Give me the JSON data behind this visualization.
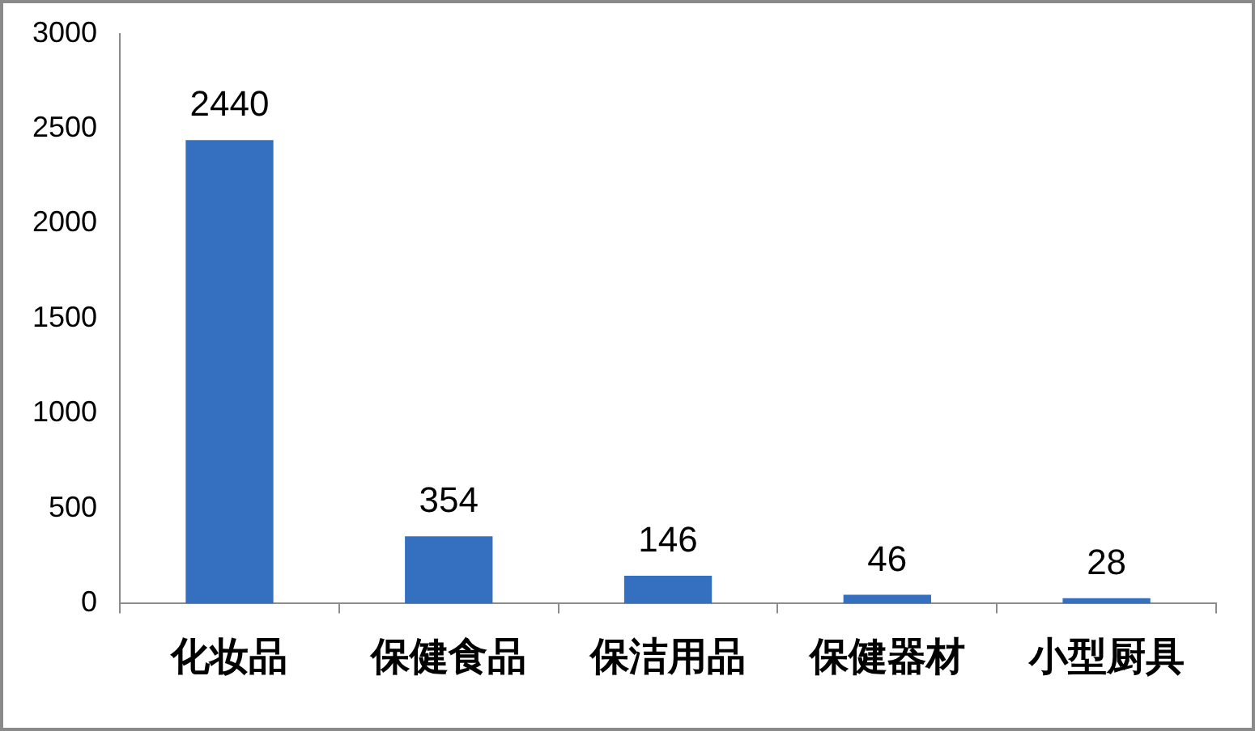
{
  "chart_data": {
    "type": "bar",
    "categories": [
      "化妆品",
      "保健食品",
      "保洁用品",
      "保健器材",
      "小型厨具"
    ],
    "values": [
      2440,
      354,
      146,
      46,
      28
    ],
    "color": "#3470bf",
    "ylim": [
      0,
      3000
    ],
    "yticks": [
      0,
      500,
      1000,
      1500,
      2000,
      2500,
      3000
    ],
    "grid": false,
    "legend": false,
    "data_labels": true
  }
}
